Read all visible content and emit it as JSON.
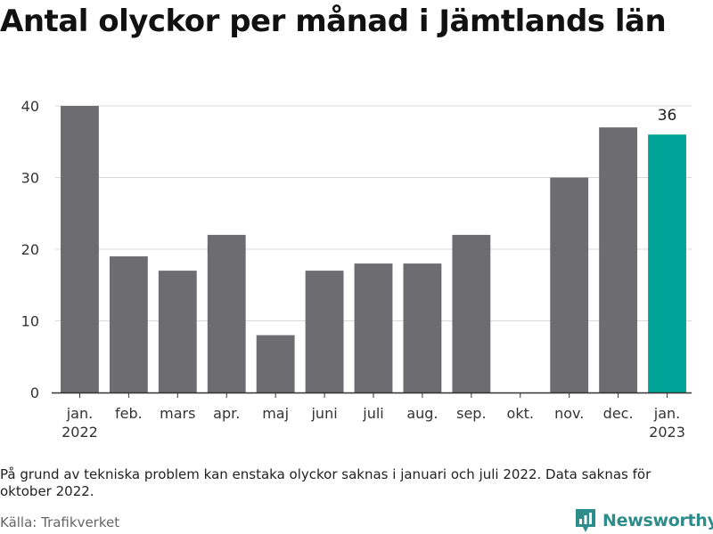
{
  "title": "Antal olyckor per månad i Jämtlands län",
  "note": "På grund av tekniska problem kan enstaka olyckor saknas i januari och juli 2022. Data saknas för oktober 2022.",
  "source": "Källa: Trafikverket",
  "logo": {
    "text": "Newsworthy",
    "icon": "newsworthy-logo-icon",
    "color": "#2e8d8b"
  },
  "chart_data": {
    "type": "bar",
    "categories": [
      [
        "jan.",
        "2022"
      ],
      [
        "feb."
      ],
      [
        "mars"
      ],
      [
        "apr."
      ],
      [
        "maj"
      ],
      [
        "juni"
      ],
      [
        "juli"
      ],
      [
        "aug."
      ],
      [
        "sep."
      ],
      [
        "okt."
      ],
      [
        "nov."
      ],
      [
        "dec."
      ],
      [
        "jan.",
        "2023"
      ]
    ],
    "values": [
      40,
      19,
      17,
      22,
      8,
      17,
      18,
      18,
      22,
      null,
      30,
      37,
      36
    ],
    "highlight_index": 12,
    "value_labels": [
      {
        "index": 12,
        "text": "36"
      }
    ],
    "ylim": [
      0,
      40
    ],
    "yticks": [
      0,
      10,
      20,
      30,
      40
    ],
    "grid": true,
    "colors": {
      "bar": "#6d6c71",
      "highlight": "#00a398",
      "grid": "#d9d9d9",
      "axis": "#333333"
    }
  }
}
